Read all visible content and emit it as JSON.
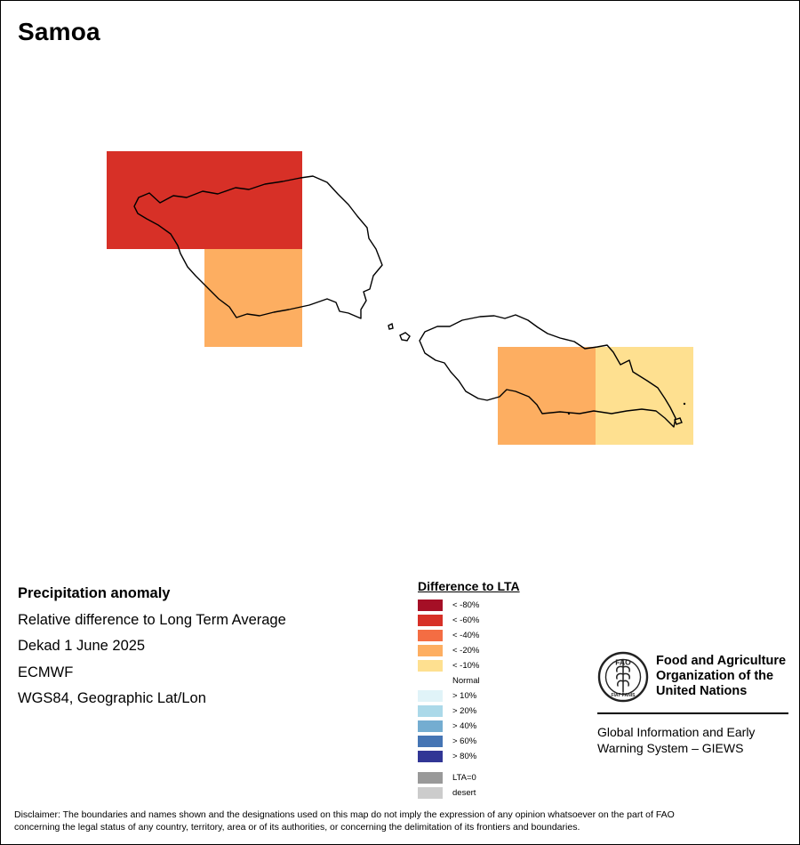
{
  "map": {
    "title": "Samoa"
  },
  "info": {
    "heading": "Precipitation anomaly",
    "subtitle": "Relative difference to Long Term Average",
    "period": "Dekad 1 June 2025",
    "source": "ECMWF",
    "projection": "WGS84, Geographic Lat/Lon"
  },
  "legend": {
    "title": "Difference to LTA",
    "items": [
      {
        "label": "< -80%",
        "color": "#a50f26"
      },
      {
        "label": "< -60%",
        "color": "#d73027"
      },
      {
        "label": "< -40%",
        "color": "#f46d43"
      },
      {
        "label": "< -20%",
        "color": "#fdae61"
      },
      {
        "label": "< -10%",
        "color": "#fee090"
      },
      {
        "label": "Normal",
        "color": "#ffffff"
      },
      {
        "label": "> 10%",
        "color": "#e0f3f8"
      },
      {
        "label": "> 20%",
        "color": "#abd9e9"
      },
      {
        "label": "> 40%",
        "color": "#74add1"
      },
      {
        "label": "> 60%",
        "color": "#4575b4"
      },
      {
        "label": "> 80%",
        "color": "#313695"
      }
    ],
    "extra": [
      {
        "label": "LTA=0",
        "color": "#999999"
      },
      {
        "label": "desert",
        "color": "#cccccc"
      }
    ]
  },
  "cells": [
    {
      "category": "< -60%",
      "color": "#d73027"
    },
    {
      "category": "< -20%",
      "color": "#fdae61"
    },
    {
      "category": "< -20%",
      "color": "#fdae61"
    },
    {
      "category": "< -10%",
      "color": "#fee090"
    }
  ],
  "logo": {
    "emblem_text": "FAO",
    "motto": "FIAT PANIS",
    "org_name_1": "Food and Agriculture",
    "org_name_2": "Organization of the",
    "org_name_3": "United Nations",
    "giews_1": "Global Information and Early",
    "giews_2": "Warning System – GIEWS"
  },
  "disclaimer": {
    "line1": "Disclaimer: The boundaries and names shown and the designations used on this map do not imply the expression of any opinion whatsoever on the part of FAO",
    "line2": "concerning the legal status of any country, territory, area or of its authorities, or concerning the delimitation of its frontiers and boundaries."
  }
}
